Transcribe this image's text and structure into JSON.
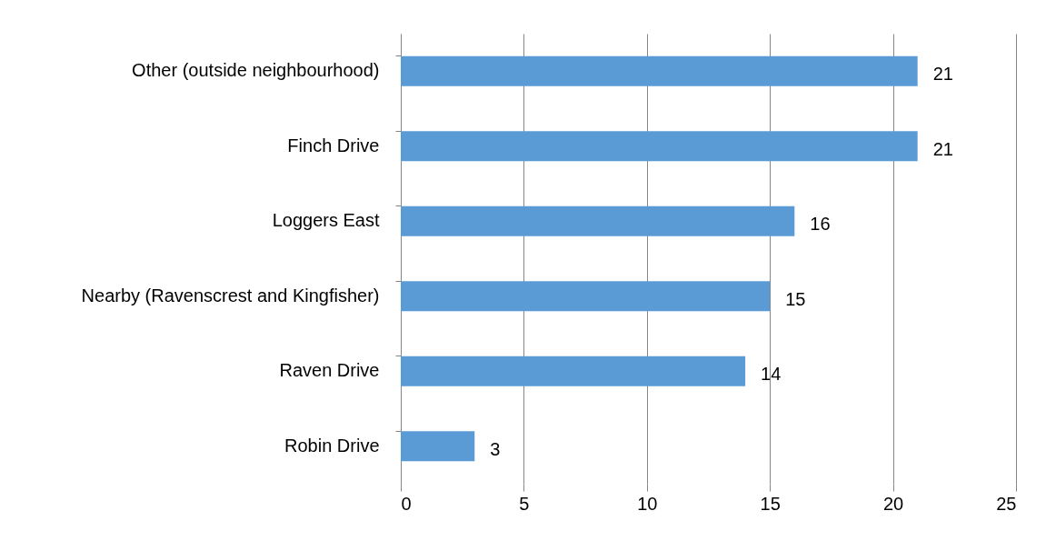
{
  "chart_data": {
    "type": "bar",
    "orientation": "horizontal",
    "categories": [
      "Other (outside neighbourhood)",
      "Finch Drive",
      "Loggers East",
      "Nearby (Ravenscrest and Kingfisher)",
      "Raven Drive",
      "Robin Drive"
    ],
    "values": [
      21,
      21,
      16,
      15,
      14,
      3
    ],
    "color": "#5b9bd5",
    "xlim": [
      0,
      25
    ],
    "xticks": [
      0,
      5,
      10,
      15,
      20,
      25
    ],
    "grid": "x",
    "data_labels": true
  }
}
